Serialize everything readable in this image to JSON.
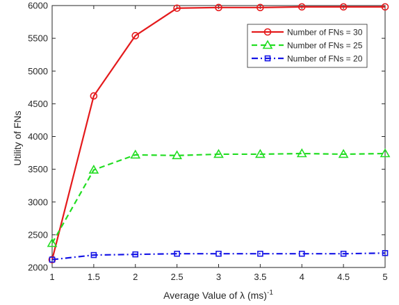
{
  "chart_data": {
    "type": "line",
    "title": "",
    "xlabel": "Average Value of λ (ms)",
    "xlabel_superscript": "-1",
    "ylabel": "Utility of FNs",
    "xlim": [
      1,
      5
    ],
    "ylim": [
      2000,
      6000
    ],
    "x": [
      1,
      1.5,
      2,
      2.5,
      3,
      3.5,
      4,
      4.5,
      5
    ],
    "xticks": [
      "1",
      "1.5",
      "2",
      "2.5",
      "3",
      "3.5",
      "4",
      "4.5",
      "5"
    ],
    "yticks": [
      "2000",
      "2500",
      "3000",
      "3500",
      "4000",
      "4500",
      "5000",
      "5500",
      "6000"
    ],
    "grid": false,
    "legend_position": "top-right",
    "series": [
      {
        "name": "Number of FNs = 30",
        "values": [
          2120,
          4620,
          5540,
          5960,
          5970,
          5970,
          5980,
          5980,
          5980
        ],
        "color": "#e41a1c",
        "marker": "circle",
        "line_style": "solid"
      },
      {
        "name": "Number of FNs = 25",
        "values": [
          2370,
          3490,
          3720,
          3710,
          3730,
          3730,
          3740,
          3730,
          3740
        ],
        "color": "#22dd22",
        "marker": "triangle",
        "line_style": "dashed"
      },
      {
        "name": "Number of FNs = 20",
        "values": [
          2120,
          2190,
          2200,
          2210,
          2210,
          2210,
          2210,
          2210,
          2220
        ],
        "color": "#1515e6",
        "marker": "square",
        "line_style": "dashdot"
      }
    ]
  }
}
